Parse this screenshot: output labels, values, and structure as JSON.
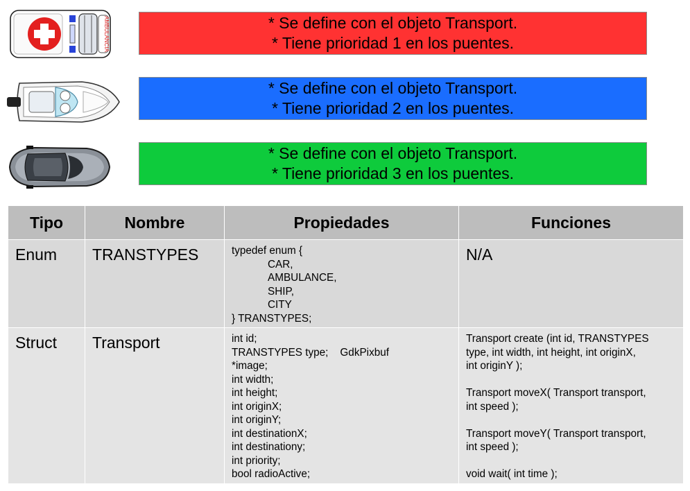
{
  "colors": {
    "priority1": "#ff3232",
    "priority2": "#1a6dff",
    "priority3": "#0ecb3c",
    "header_bg": "#bdbdbd",
    "row1_bg": "#d9d9d9",
    "row2_bg": "#e4e4e4"
  },
  "vehicles": [
    {
      "icon": "ambulance-icon",
      "side_text": "AMBULANCIA",
      "line1": "* Se define con el objeto Transport.",
      "line2": "* Tiene prioridad 1 en los puentes."
    },
    {
      "icon": "ship-icon",
      "line1": "* Se define con el objeto Transport.",
      "line2": "* Tiene prioridad 2 en los puentes."
    },
    {
      "icon": "car-icon",
      "line1": "* Se define con el objeto Transport.",
      "line2": "* Tiene prioridad 3 en los puentes."
    }
  ],
  "table": {
    "headers": [
      "Tipo",
      "Nombre",
      "Propiedades",
      "Funciones"
    ],
    "rows": [
      {
        "tipo": "Enum",
        "nombre": "TRANSTYPES",
        "propiedades": [
          "typedef enum {",
          "CAR,",
          "AMBULANCE,",
          "SHIP,",
          "CITY",
          "} TRANSTYPES;"
        ],
        "funciones": "N/A"
      },
      {
        "tipo": "Struct",
        "nombre": "Transport",
        "propiedades": [
          "int id;",
          "TRANSTYPES type;    GdkPixbuf",
          "*image;",
          "int width;",
          "int height;",
          "int originX;",
          "int originY;",
          "int destinationX;",
          "int destinationy;",
          "int priority;",
          "bool radioActive;"
        ],
        "funciones": [
          "Transport create (int id, TRANSTYPES",
          "type, int width, int height, int originX,",
          "int originY );",
          "Transport moveX( Transport transport,",
          "int speed );",
          "Transport moveY( Transport transport,",
          "int speed );",
          "void wait( int time );"
        ]
      }
    ]
  }
}
